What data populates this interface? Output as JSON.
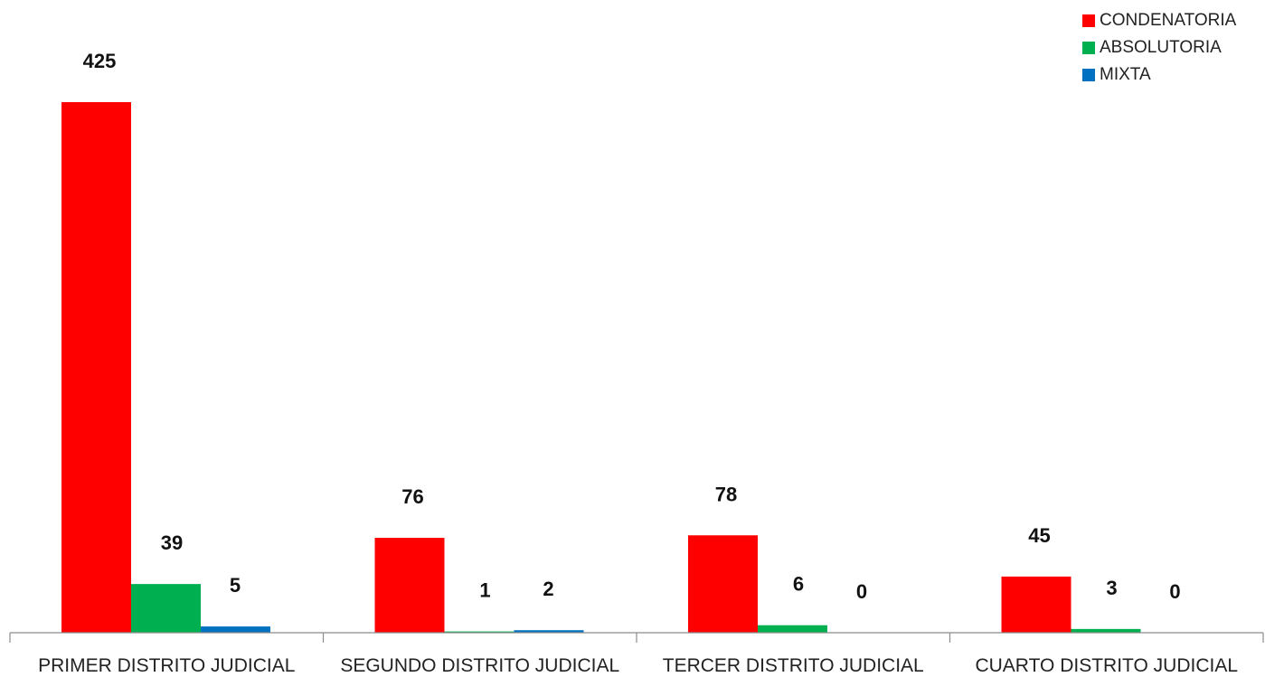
{
  "chart_data": {
    "type": "bar",
    "title": "",
    "xlabel": "",
    "ylabel": "",
    "ylim": [
      0,
      460
    ],
    "grid": false,
    "legend_position": "top-right",
    "categories": [
      "PRIMER DISTRITO JUDICIAL",
      "SEGUNDO DISTRITO JUDICIAL",
      "TERCER DISTRITO JUDICIAL",
      "CUARTO DISTRITO JUDICIAL"
    ],
    "series": [
      {
        "name": "CONDENATORIA",
        "color": "#ff0000",
        "values": [
          425,
          76,
          78,
          45
        ]
      },
      {
        "name": "ABSOLUTORIA",
        "color": "#00b050",
        "values": [
          39,
          1,
          6,
          3
        ]
      },
      {
        "name": "MIXTA",
        "color": "#0070c0",
        "values": [
          5,
          2,
          0,
          0
        ]
      }
    ]
  }
}
